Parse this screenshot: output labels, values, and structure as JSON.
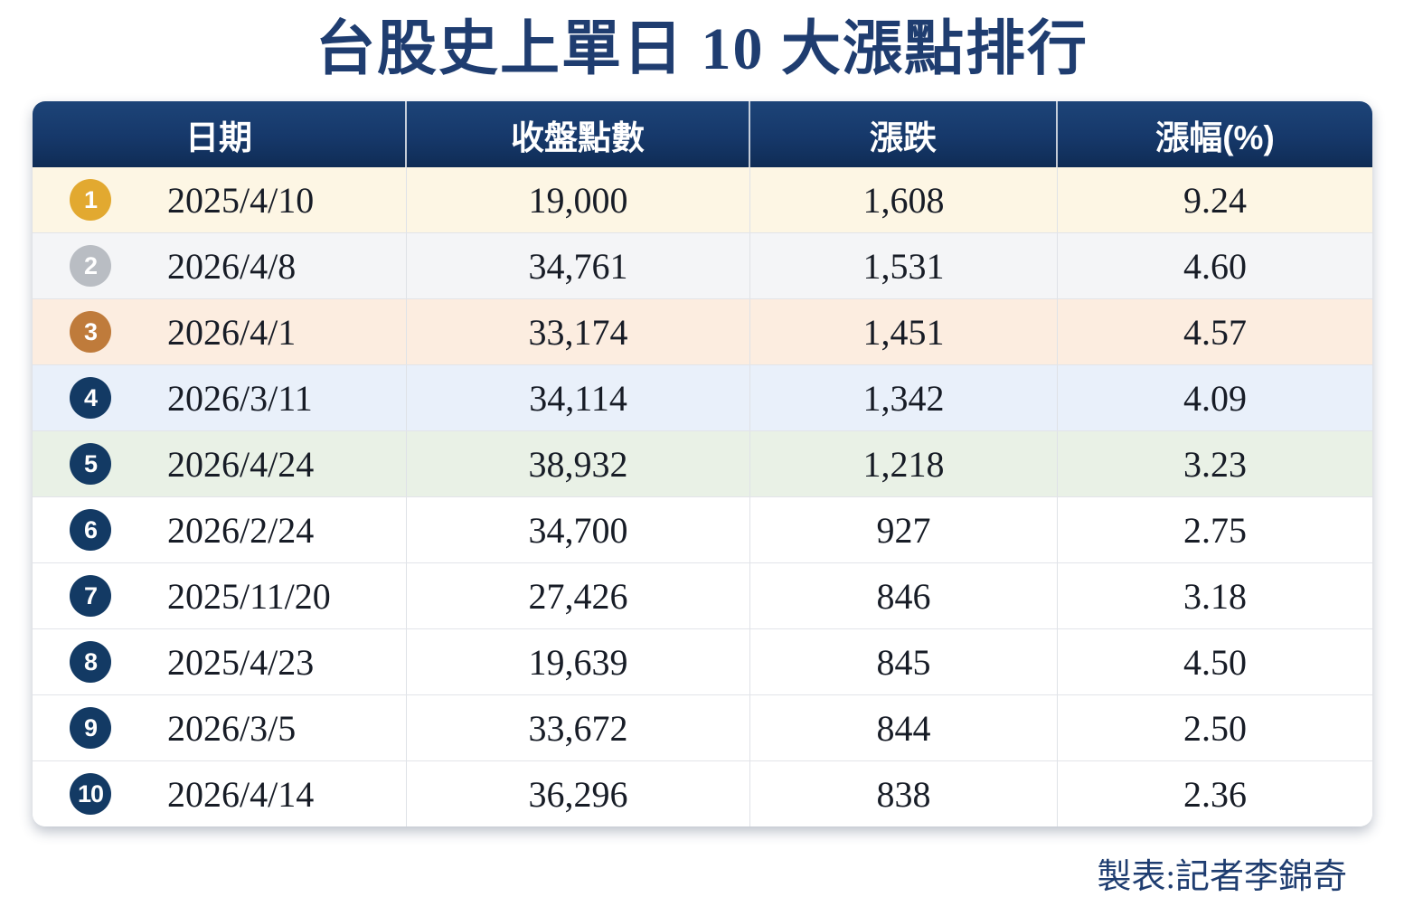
{
  "title": "台股史上單日 10 大漲點排行",
  "credit": "製表:記者李錦奇",
  "colors": {
    "header_navy_top": "#1d4478",
    "header_navy_bottom": "#0f2c55",
    "title_navy": "#1f3d70",
    "badge_gold": "#e2a930",
    "badge_silver": "#b9bdc3",
    "badge_bronze": "#bf7b3b",
    "badge_navy": "#133a64",
    "row1_bg": "#fdf6e4",
    "row2_bg": "#f4f5f7",
    "row3_bg": "#fcede0",
    "row4_bg": "#e9f0fa",
    "row5_bg": "#e9f1e6",
    "row_default_bg": "#ffffff"
  },
  "chart_data": {
    "type": "table",
    "title": "台股史上單日 10 大漲點排行",
    "columns": [
      "日期",
      "收盤點數",
      "漲跌",
      "漲幅(%)"
    ],
    "rows": [
      {
        "rank": "1",
        "date": "2025/4/10",
        "close": "19,000",
        "change": "1,608",
        "pct": "9.24",
        "badge_color": "#e2a930",
        "row_bg": "#fdf6e4"
      },
      {
        "rank": "2",
        "date": "2026/4/8",
        "close": "34,761",
        "change": "1,531",
        "pct": "4.60",
        "badge_color": "#b9bdc3",
        "row_bg": "#f4f5f7"
      },
      {
        "rank": "3",
        "date": "2026/4/1",
        "close": "33,174",
        "change": "1,451",
        "pct": "4.57",
        "badge_color": "#bf7b3b",
        "row_bg": "#fcede0"
      },
      {
        "rank": "4",
        "date": "2026/3/11",
        "close": "34,114",
        "change": "1,342",
        "pct": "4.09",
        "badge_color": "#133a64",
        "row_bg": "#e9f0fa"
      },
      {
        "rank": "5",
        "date": "2026/4/24",
        "close": "38,932",
        "change": "1,218",
        "pct": "3.23",
        "badge_color": "#133a64",
        "row_bg": "#e9f1e6"
      },
      {
        "rank": "6",
        "date": "2026/2/24",
        "close": "34,700",
        "change": "927",
        "pct": "2.75",
        "badge_color": "#133a64",
        "row_bg": "#ffffff"
      },
      {
        "rank": "7",
        "date": "2025/11/20",
        "close": "27,426",
        "change": "846",
        "pct": "3.18",
        "badge_color": "#133a64",
        "row_bg": "#ffffff"
      },
      {
        "rank": "8",
        "date": "2025/4/23",
        "close": "19,639",
        "change": "845",
        "pct": "4.50",
        "badge_color": "#133a64",
        "row_bg": "#ffffff"
      },
      {
        "rank": "9",
        "date": "2026/3/5",
        "close": "33,672",
        "change": "844",
        "pct": "2.50",
        "badge_color": "#133a64",
        "row_bg": "#ffffff"
      },
      {
        "rank": "10",
        "date": "2026/4/14",
        "close": "36,296",
        "change": "838",
        "pct": "2.36",
        "badge_color": "#133a64",
        "row_bg": "#ffffff"
      }
    ]
  }
}
